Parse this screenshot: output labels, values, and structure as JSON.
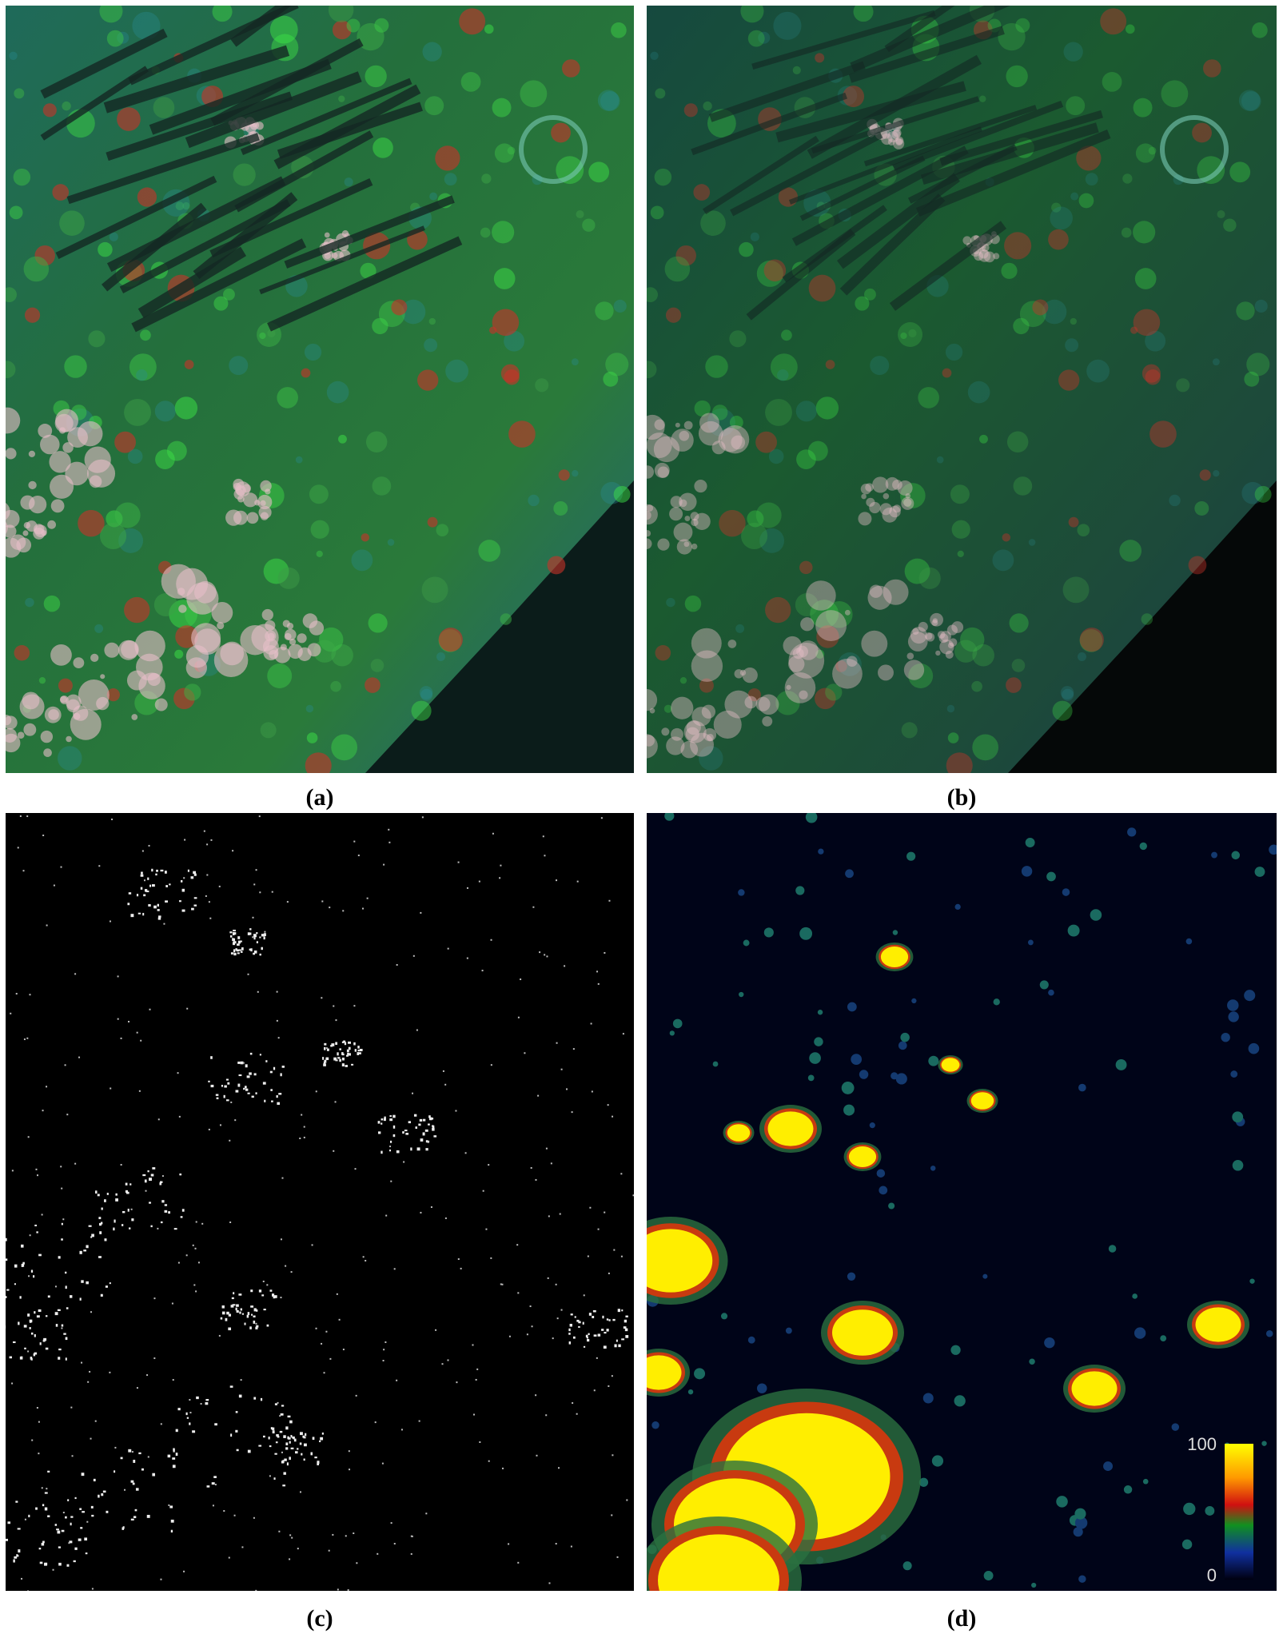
{
  "panels": [
    {
      "caption": "(a)"
    },
    {
      "caption": "(b)"
    },
    {
      "caption": "(c)"
    },
    {
      "caption": "(d)"
    }
  ],
  "colorbar": {
    "max": "100",
    "min": "0"
  }
}
